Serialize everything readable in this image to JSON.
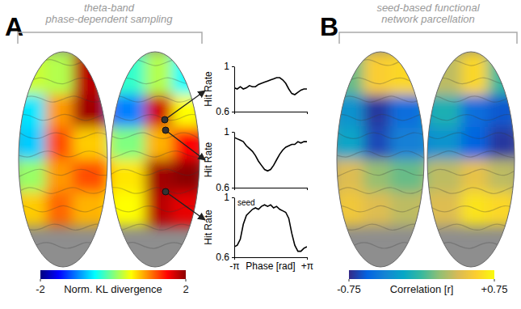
{
  "chart_data": [
    {
      "type": "brain_map",
      "panel_label": "A",
      "title": [
        "theta-band",
        "phase-dependent sampling"
      ],
      "values": [
        0.3,
        0.2,
        1.8,
        -0.3,
        0.2,
        -0.5,
        -0.6,
        0.9,
        1.9,
        -1.0,
        1.7,
        0.5,
        -0.7,
        1.2,
        0.7,
        0.0,
        0.8,
        1.5,
        0.1,
        0.9,
        1.2,
        0.6,
        1.9,
        2.0,
        0.7,
        1.1,
        0.8,
        0.5,
        1.8,
        1.6
      ],
      "colorbar": {
        "label": "Norm. KL divergence",
        "range": [
          -2,
          2
        ],
        "ticks": [
          -2,
          2
        ]
      }
    },
    {
      "type": "line",
      "y_label": "Hit Rate",
      "tick_labels": "y",
      "x": [
        -3.14,
        -2.88,
        -2.62,
        -2.36,
        -2.09,
        -1.83,
        -1.57,
        -1.31,
        -1.05,
        -0.79,
        -0.52,
        -0.26,
        0,
        0.26,
        0.52,
        0.79,
        1.05,
        1.31,
        1.57,
        1.83,
        2.09,
        2.36,
        2.62,
        2.88,
        3.14
      ],
      "values": [
        0.81,
        0.8,
        0.82,
        0.8,
        0.81,
        0.83,
        0.82,
        0.82,
        0.84,
        0.85,
        0.86,
        0.87,
        0.88,
        0.89,
        0.9,
        0.9,
        0.88,
        0.85,
        0.8,
        0.76,
        0.75,
        0.77,
        0.79,
        0.8,
        0.8
      ],
      "xlim": [
        -3.14159,
        3.14159
      ],
      "xticks": [
        {
          "value": -3.14159,
          "label": "-π"
        },
        {
          "value": 3.14159,
          "label": "+π"
        }
      ],
      "ylim": [
        0.6,
        1
      ],
      "yticks": [
        0.6,
        1
      ]
    },
    {
      "type": "line",
      "y_label": "Hit Rate",
      "tick_labels": "y",
      "x": [
        -3.14,
        -2.88,
        -2.62,
        -2.36,
        -2.09,
        -1.83,
        -1.57,
        -1.31,
        -1.05,
        -0.79,
        -0.52,
        -0.26,
        0,
        0.26,
        0.52,
        0.79,
        1.05,
        1.31,
        1.57,
        1.83,
        2.09,
        2.36,
        2.62,
        2.88,
        3.14
      ],
      "values": [
        0.96,
        0.95,
        0.94,
        0.93,
        0.9,
        0.88,
        0.86,
        0.83,
        0.79,
        0.76,
        0.73,
        0.72,
        0.73,
        0.76,
        0.8,
        0.84,
        0.87,
        0.89,
        0.9,
        0.91,
        0.91,
        0.93,
        0.92,
        0.93,
        0.93
      ],
      "xlim": [
        -3.14159,
        3.14159
      ],
      "xticks": [
        {
          "value": -3.14159,
          "label": "-π"
        },
        {
          "value": 3.14159,
          "label": "+π"
        }
      ],
      "ylim": [
        0.6,
        1
      ],
      "yticks": [
        0.6,
        1
      ]
    },
    {
      "type": "line",
      "y_label": "Hit Rate",
      "x_label": "Phase [rad]",
      "annotations": [
        "seed"
      ],
      "x": [
        -3.14,
        -2.88,
        -2.62,
        -2.36,
        -2.09,
        -1.83,
        -1.57,
        -1.31,
        -1.05,
        -0.79,
        -0.52,
        -0.26,
        0,
        0.26,
        0.52,
        0.79,
        1.05,
        1.31,
        1.57,
        1.83,
        2.09,
        2.36,
        2.62,
        2.88,
        3.14
      ],
      "values": [
        0.67,
        0.68,
        0.72,
        0.82,
        0.88,
        0.9,
        0.92,
        0.93,
        0.92,
        0.94,
        0.95,
        0.94,
        0.95,
        0.93,
        0.94,
        0.92,
        0.91,
        0.9,
        0.86,
        0.76,
        0.68,
        0.64,
        0.64,
        0.66,
        0.67
      ],
      "xlim": [
        -3.14159,
        3.14159
      ],
      "xticks": [
        {
          "value": -3.14159,
          "label": "-π"
        },
        {
          "value": 3.14159,
          "label": "+π"
        }
      ],
      "ylim": [
        0.6,
        1
      ],
      "yticks": [
        0.6,
        1
      ]
    },
    {
      "type": "brain_map",
      "panel_label": "B",
      "title": [
        "seed-based functional",
        "network parcellation"
      ],
      "values": [
        0.1,
        0.55,
        0.6,
        0.3,
        0.6,
        0.0,
        -0.3,
        -0.7,
        -0.5,
        -0.1,
        -0.5,
        -0.6,
        -0.2,
        -0.65,
        -0.4,
        -0.3,
        -0.55,
        -0.7,
        0.4,
        0.2,
        0.1,
        0.3,
        0.45,
        0.3,
        0.5,
        0.4,
        0.3,
        0.4,
        0.65,
        0.6
      ],
      "colorbar": {
        "label": "Correlation [r]",
        "range": [
          -0.75,
          0.75
        ],
        "ticks": [
          -0.75,
          {
            "value": 0.75,
            "label": "+0.75"
          }
        ]
      }
    }
  ]
}
